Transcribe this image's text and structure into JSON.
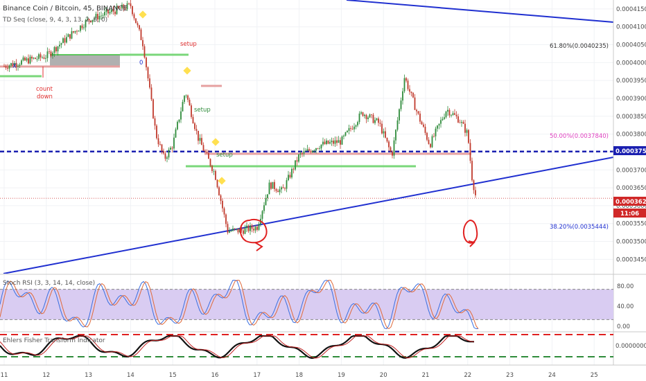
{
  "header": {
    "title": "Binance Coin / Bitcoin, 45, BINANCE",
    "indicator": "TD Seq (close, 9, 4, 3, 13, 2, 8, 0)"
  },
  "annotations": {
    "setup_top": "setup",
    "setup_mid": "setup",
    "setup_low": "setup",
    "count_down": [
      "count",
      "down"
    ]
  },
  "price_tags": {
    "blue_level": "0.00037513",
    "last_price": "0.00036207",
    "countdown": "11:06"
  },
  "fib_labels": {
    "f618": "61.80%(0.0040235)",
    "f500": "50.00%(0.0037840)",
    "f382": "38.20%(0.0035444)"
  },
  "stoch": {
    "label": "Stoch RSI (3, 3, 14, 14, close)",
    "ticks": [
      "80.00",
      "40.00",
      "0.00"
    ]
  },
  "fisher": {
    "label": "Ehlers Fisher Transform Indicator",
    "tick": "0.0000000"
  },
  "colors": {
    "up": "#2e8b3a",
    "down": "#c0392b",
    "trend": "#1f2fd0",
    "fib": "#e040c0",
    "stoch_band": "#d9ccf2",
    "annotation": "#e03030"
  },
  "chart_data": {
    "type": "candlestick",
    "title": "Binance Coin / Bitcoin, 45, BINANCE",
    "x": [
      "11",
      "12",
      "13",
      "14",
      "15",
      "16",
      "17",
      "18",
      "19",
      "20",
      "21",
      "22",
      "23",
      "24",
      "25"
    ],
    "y_ticks": [
      "0.00041500",
      "0.00041000",
      "0.00040500",
      "0.00040000",
      "0.00039500",
      "0.00039000",
      "0.00038500",
      "0.00038000",
      "0.00037500",
      "0.00037000",
      "0.00036500",
      "0.00036000",
      "0.00035500",
      "0.00035000",
      "0.00034500"
    ],
    "ylim": [
      0.000341,
      0.0004175
    ],
    "close_path": [
      [
        "11.0",
        0.000399
      ],
      [
        "11.5",
        0.0004005
      ],
      [
        "12.0",
        0.0004018
      ],
      [
        "12.5",
        0.000407
      ],
      [
        "13.0",
        0.000412
      ],
      [
        "13.5",
        0.000414
      ],
      [
        "14.0",
        0.000416
      ],
      [
        "14.3",
        0.000405
      ],
      [
        "14.6",
        0.00038
      ],
      [
        "14.8",
        0.000373
      ],
      [
        "15.0",
        0.000377
      ],
      [
        "15.3",
        0.000392
      ],
      [
        "15.6",
        0.000379
      ],
      [
        "16.0",
        0.000369
      ],
      [
        "16.3",
        0.000353
      ],
      [
        "16.6",
        0.000353
      ],
      [
        "17.0",
        0.000354
      ],
      [
        "17.3",
        0.000366
      ],
      [
        "17.6",
        0.000364
      ],
      [
        "18.0",
        0.000374
      ],
      [
        "18.5",
        0.000377
      ],
      [
        "19.0",
        0.000378
      ],
      [
        "19.5",
        0.000386
      ],
      [
        "19.9",
        0.000383
      ],
      [
        "20.2",
        0.000374
      ],
      [
        "20.5",
        0.000396
      ],
      [
        "20.8",
        0.000386
      ],
      [
        "21.1",
        0.000377
      ],
      [
        "21.5",
        0.000387
      ],
      [
        "21.8",
        0.000384
      ],
      [
        "22.0",
        0.00038
      ],
      [
        "22.1",
        0.000368
      ],
      [
        "22.2",
        0.000362
      ]
    ],
    "horizontal_lines": {
      "fib_61_8": 0.0040235,
      "fib_50": 0.003784,
      "fib_38_2": 0.0035444,
      "blue_dashed": 0.00037513,
      "last_price": 0.00036207
    },
    "stoch_rsi": {
      "upper_band": 80,
      "lower_band": 20,
      "ylim": [
        0,
        100
      ]
    },
    "fisher": {
      "zero": 0
    }
  }
}
